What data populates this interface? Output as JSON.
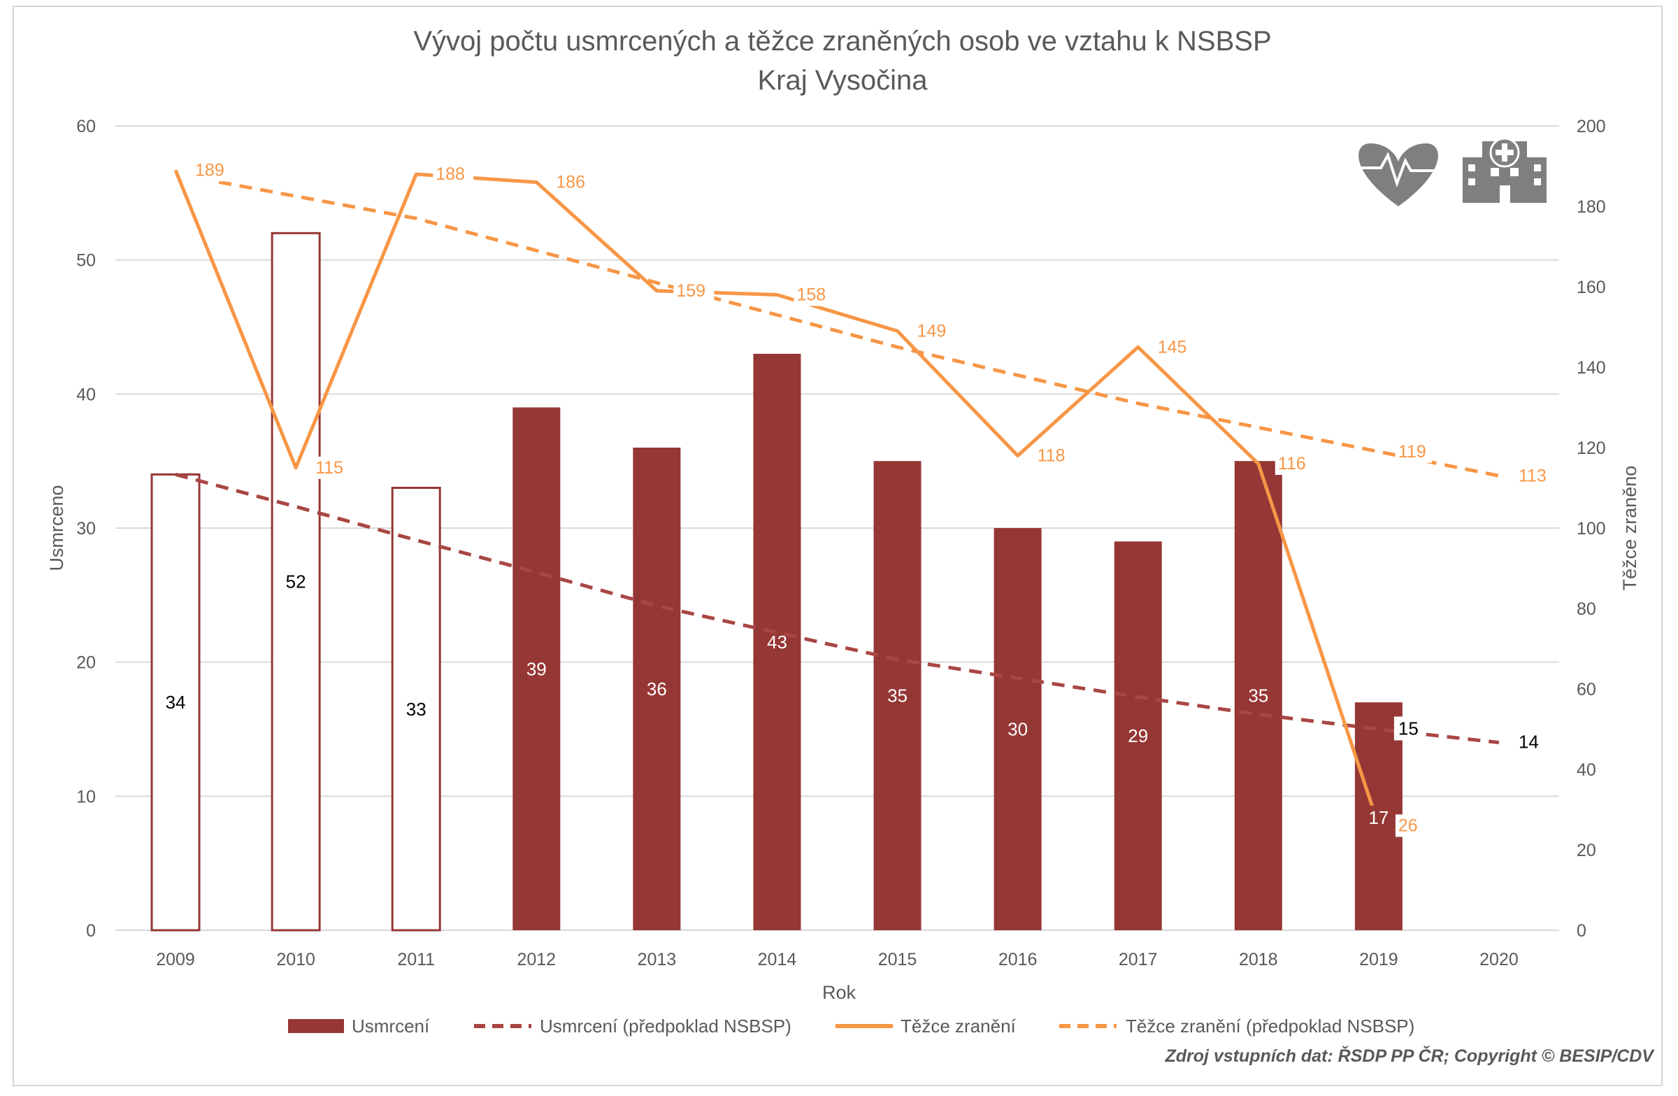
{
  "chart_data": {
    "type": "bar+line",
    "title": "Vývoj počtu usmrcených a těžce zraněných osob ve vztahu k NSBSP",
    "subtitle": "Kraj Vysočina",
    "xlabel": "Rok",
    "ylabel_left": "Usmrceno",
    "ylabel_right": "Těžce zraněno",
    "ylim_left": [
      0,
      60
    ],
    "ylim_right": [
      0,
      200
    ],
    "yticks_left": [
      "0",
      "10",
      "20",
      "30",
      "40",
      "50",
      "60"
    ],
    "yticks_right": [
      "0",
      "20",
      "40",
      "60",
      "80",
      "100",
      "120",
      "140",
      "160",
      "180",
      "200"
    ],
    "categories": [
      "2009",
      "2010",
      "2011",
      "2012",
      "2013",
      "2014",
      "2015",
      "2016",
      "2017",
      "2018",
      "2019",
      "2020"
    ],
    "series": [
      {
        "name": "Usmrcení",
        "kind": "bar",
        "axis": "left",
        "color": "#953735",
        "values": [
          34,
          52,
          33,
          39,
          36,
          43,
          35,
          30,
          29,
          35,
          17,
          null
        ],
        "outlined_baseline_years": [
          "2009",
          "2010",
          "2011"
        ]
      },
      {
        "name": "Usmrcení (předpoklad NSBSP)",
        "kind": "line-dashed",
        "axis": "left",
        "color": "#a94643",
        "values": [
          34,
          31.6,
          29.1,
          26.7,
          24.2,
          22.2,
          20.2,
          18.8,
          17.4,
          16.1,
          15,
          14
        ],
        "labeled_points": {
          "2019": "15",
          "2020": "14"
        }
      },
      {
        "name": "Těžce zranění",
        "kind": "line",
        "axis": "right",
        "color": "#f79646",
        "values": [
          189,
          115,
          188,
          186,
          159,
          158,
          149,
          118,
          145,
          116,
          26,
          null
        ]
      },
      {
        "name": "Těžce zranění (předpoklad NSBSP)",
        "kind": "line-dashed",
        "axis": "right",
        "color": "#f79646",
        "values": [
          null,
          185,
          177,
          169,
          161,
          153,
          145,
          138,
          131,
          125,
          119,
          113
        ],
        "labeled_points": {
          "2019": "119",
          "2020": "113"
        }
      }
    ],
    "legend_position": "bottom",
    "grid": true
  },
  "source_note": "Zdroj vstupních dat: ŘSDP PP ČR; Copyright © BESIP/CDV",
  "icons": [
    "heart-icon",
    "hospital-icon"
  ]
}
